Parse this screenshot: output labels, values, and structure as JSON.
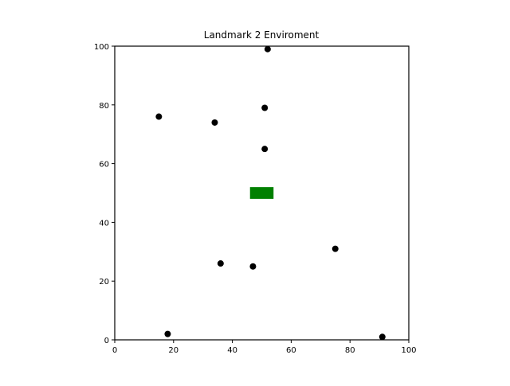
{
  "chart_data": {
    "type": "scatter",
    "title": "Landmark 2 Enviroment",
    "xlabel": "",
    "ylabel": "",
    "xlim": [
      0,
      100
    ],
    "ylim": [
      0,
      100
    ],
    "x_ticks": [
      0,
      20,
      40,
      60,
      80,
      100
    ],
    "y_ticks": [
      0,
      20,
      40,
      60,
      80,
      100
    ],
    "x_tick_labels": [
      "0",
      "20",
      "40",
      "60",
      "80",
      "100"
    ],
    "y_tick_labels": [
      "0",
      "20",
      "40",
      "60",
      "80",
      "100"
    ],
    "grid": false,
    "point_color": "#000000",
    "points": [
      {
        "x": 52,
        "y": 99
      },
      {
        "x": 51,
        "y": 79
      },
      {
        "x": 15,
        "y": 76
      },
      {
        "x": 34,
        "y": 74
      },
      {
        "x": 51,
        "y": 65
      },
      {
        "x": 75,
        "y": 31
      },
      {
        "x": 36,
        "y": 26
      },
      {
        "x": 47,
        "y": 25
      },
      {
        "x": 18,
        "y": 2
      },
      {
        "x": 91,
        "y": 1
      }
    ],
    "rectangle": {
      "x0": 46,
      "x1": 54,
      "y0": 48,
      "y1": 52,
      "color": "#008000"
    }
  }
}
